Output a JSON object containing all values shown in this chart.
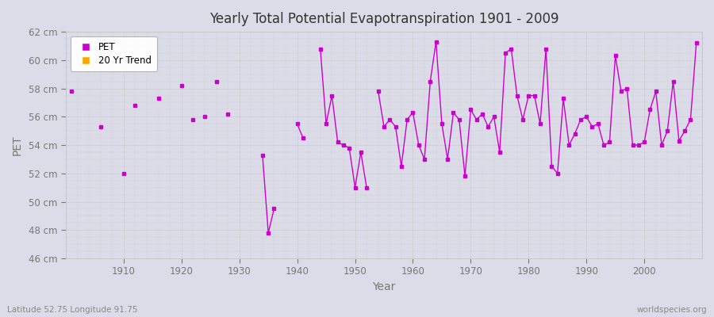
{
  "title": "Yearly Total Potential Evapotranspiration 1901 - 2009",
  "xlabel": "Year",
  "ylabel": "PET",
  "lat_lon_label": "Latitude 52.75 Longitude 91.75",
  "watermark": "worldspecies.org",
  "line_color": "#CC00CC",
  "trend_color": "#FFA500",
  "bg_color": "#DCDCE8",
  "plot_bg_color": "#DCDCE8",
  "ylim": [
    46,
    62
  ],
  "ytick_labels": [
    "46 cm",
    "48 cm",
    "50 cm",
    "52 cm",
    "54 cm",
    "56 cm",
    "58 cm",
    "60 cm",
    "62 cm"
  ],
  "ytick_values": [
    46,
    48,
    50,
    52,
    54,
    56,
    58,
    60,
    62
  ],
  "years": [
    1901,
    1902,
    1903,
    1904,
    1905,
    1906,
    1907,
    1908,
    1909,
    1910,
    1911,
    1912,
    1913,
    1914,
    1915,
    1916,
    1917,
    1918,
    1919,
    1920,
    1921,
    1922,
    1923,
    1924,
    1925,
    1926,
    1927,
    1928,
    1929,
    1930,
    1931,
    1932,
    1933,
    1934,
    1935,
    1936,
    1937,
    1938,
    1939,
    1940,
    1941,
    1942,
    1943,
    1944,
    1945,
    1946,
    1947,
    1948,
    1949,
    1950,
    1951,
    1952,
    1953,
    1954,
    1955,
    1956,
    1957,
    1958,
    1959,
    1960,
    1961,
    1962,
    1963,
    1964,
    1965,
    1966,
    1967,
    1968,
    1969,
    1970,
    1971,
    1972,
    1973,
    1974,
    1975,
    1976,
    1977,
    1978,
    1979,
    1980,
    1981,
    1982,
    1983,
    1984,
    1985,
    1986,
    1987,
    1988,
    1989,
    1990,
    1991,
    1992,
    1993,
    1994,
    1995,
    1996,
    1997,
    1998,
    1999,
    2000,
    2001,
    2002,
    2003,
    2004,
    2005,
    2006,
    2007,
    2008,
    2009
  ],
  "pet_values": [
    57.8,
    null,
    null,
    null,
    null,
    55.3,
    null,
    null,
    null,
    52.0,
    null,
    56.8,
    null,
    null,
    null,
    57.3,
    null,
    null,
    null,
    58.2,
    null,
    55.8,
    null,
    56.0,
    null,
    58.5,
    null,
    56.2,
    null,
    null,
    null,
    null,
    null,
    53.3,
    47.8,
    49.5,
    null,
    null,
    null,
    55.5,
    54.5,
    null,
    null,
    60.8,
    55.5,
    57.5,
    54.2,
    54.0,
    53.8,
    51.0,
    53.5,
    51.0,
    null,
    57.8,
    55.3,
    55.8,
    55.3,
    52.5,
    55.8,
    56.3,
    54.0,
    53.0,
    58.5,
    61.3,
    55.5,
    53.0,
    56.3,
    55.8,
    51.8,
    56.5,
    55.8,
    56.2,
    55.3,
    56.0,
    53.5,
    60.5,
    60.8,
    57.5,
    55.8,
    57.5,
    57.5,
    55.5,
    60.8,
    52.5,
    52.0,
    57.3,
    54.0,
    54.8,
    55.8,
    56.0,
    55.3,
    55.5,
    54.0,
    54.2,
    60.3,
    57.8,
    58.0,
    54.0,
    54.0,
    54.2,
    56.5,
    57.8,
    54.0,
    55.0,
    58.5,
    54.3,
    55.0,
    55.8,
    61.2
  ],
  "grid_color": "#C8C8C8",
  "tick_color": "#777777",
  "title_color": "#333333",
  "label_color": "#777777"
}
